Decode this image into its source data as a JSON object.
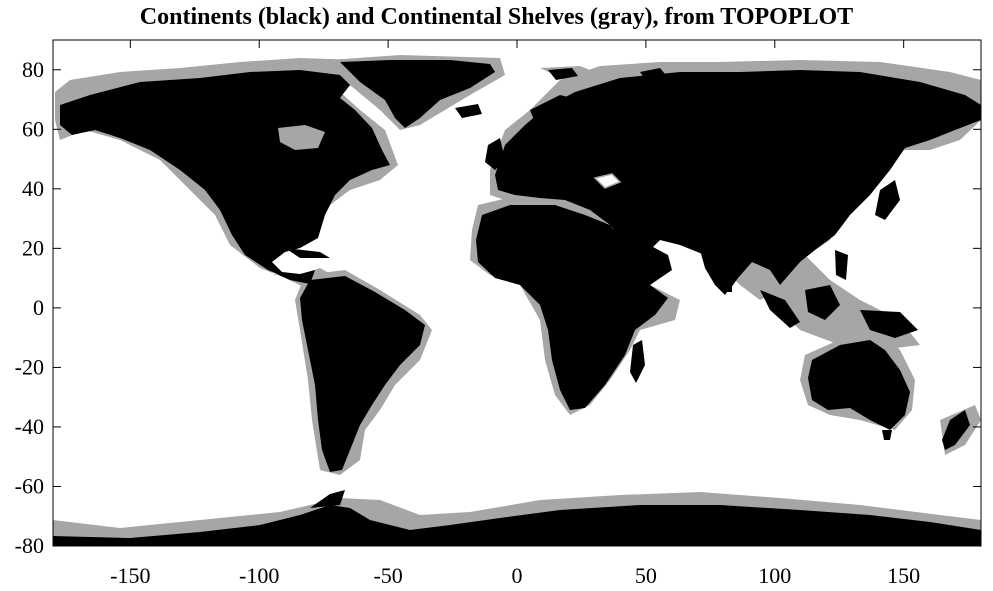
{
  "title": "Continents (black) and Continental Shelves (gray), from TOPOPLOT",
  "colors": {
    "land": "#000000",
    "shelf": "#a6a6a6",
    "ocean": "#ffffff",
    "axis": "#000000"
  },
  "axes": {
    "x": {
      "min": -180,
      "max": 180,
      "ticks": [
        -150,
        -100,
        -50,
        0,
        50,
        100,
        150
      ]
    },
    "y": {
      "min": -80,
      "max": 90,
      "ticks": [
        80,
        60,
        40,
        20,
        0,
        -20,
        -40,
        -60,
        -80
      ]
    }
  },
  "legend_text": {
    "land": "Continents (black)",
    "shelf": "Continental Shelves (gray)"
  }
}
